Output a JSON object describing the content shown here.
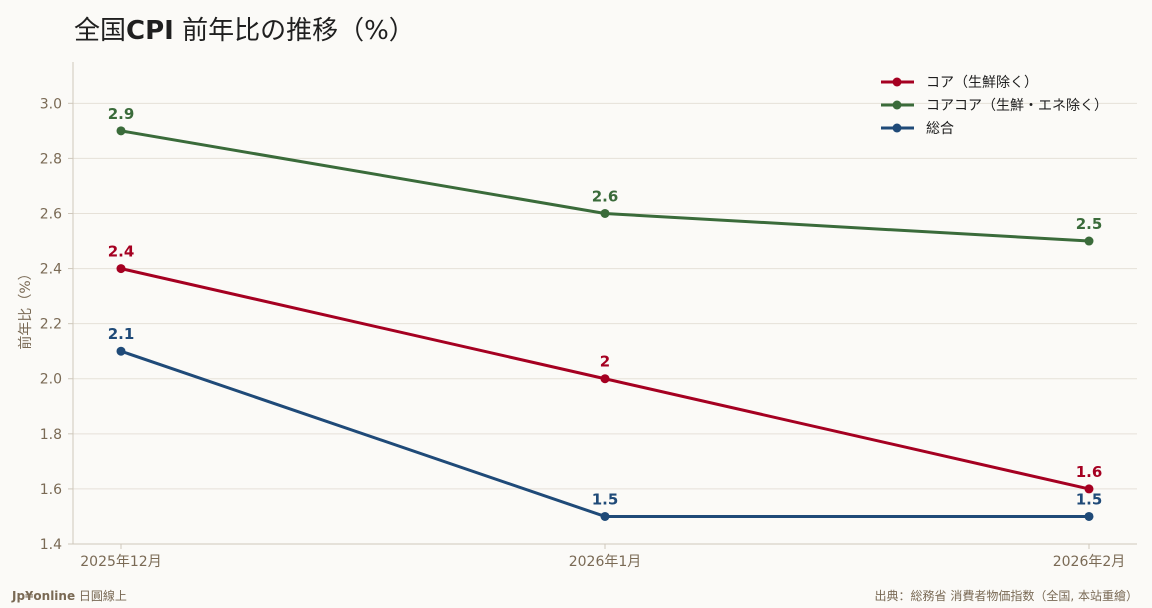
{
  "chart_data": {
    "type": "line",
    "title": "全国CPI 前年比の推移（%）",
    "ylabel": "前年比（%）",
    "categories": [
      "2025年12月",
      "2026年1月",
      "2026年2月"
    ],
    "ylim": [
      1.4,
      3.15
    ],
    "yticks": [
      1.4,
      1.6,
      1.8,
      2.0,
      2.2,
      2.4,
      2.6,
      2.8,
      3.0
    ],
    "ytick_labels": [
      "1.4",
      "1.6",
      "1.8",
      "2.0",
      "2.2",
      "2.4",
      "2.6",
      "2.8",
      "3.0"
    ],
    "grid": true,
    "legend_position": "top-right",
    "series": [
      {
        "name": "コア（生鮮除く）",
        "color": "#a50021",
        "values": [
          2.4,
          2.0,
          1.6
        ],
        "labels": [
          "2.4",
          "2",
          "1.6"
        ]
      },
      {
        "name": "コアコア（生鮮・エネ除く）",
        "color": "#3a6b3a",
        "values": [
          2.9,
          2.6,
          2.5
        ],
        "labels": [
          "2.9",
          "2.6",
          "2.5"
        ]
      },
      {
        "name": "総合",
        "color": "#1f4a78",
        "values": [
          2.1,
          1.5,
          1.5
        ],
        "labels": [
          "2.1",
          "1.5",
          "1.5"
        ]
      }
    ]
  },
  "header": {
    "title_prefix": "全国",
    "title_bold": "CPI",
    "title_suffix": " 前年比の推移（%）"
  },
  "footer": {
    "brand": "Jp¥online",
    "brand_suffix": " 日圓線上",
    "source": "出典：総務省 消費者物価指数（全国, 本站重繪）"
  }
}
